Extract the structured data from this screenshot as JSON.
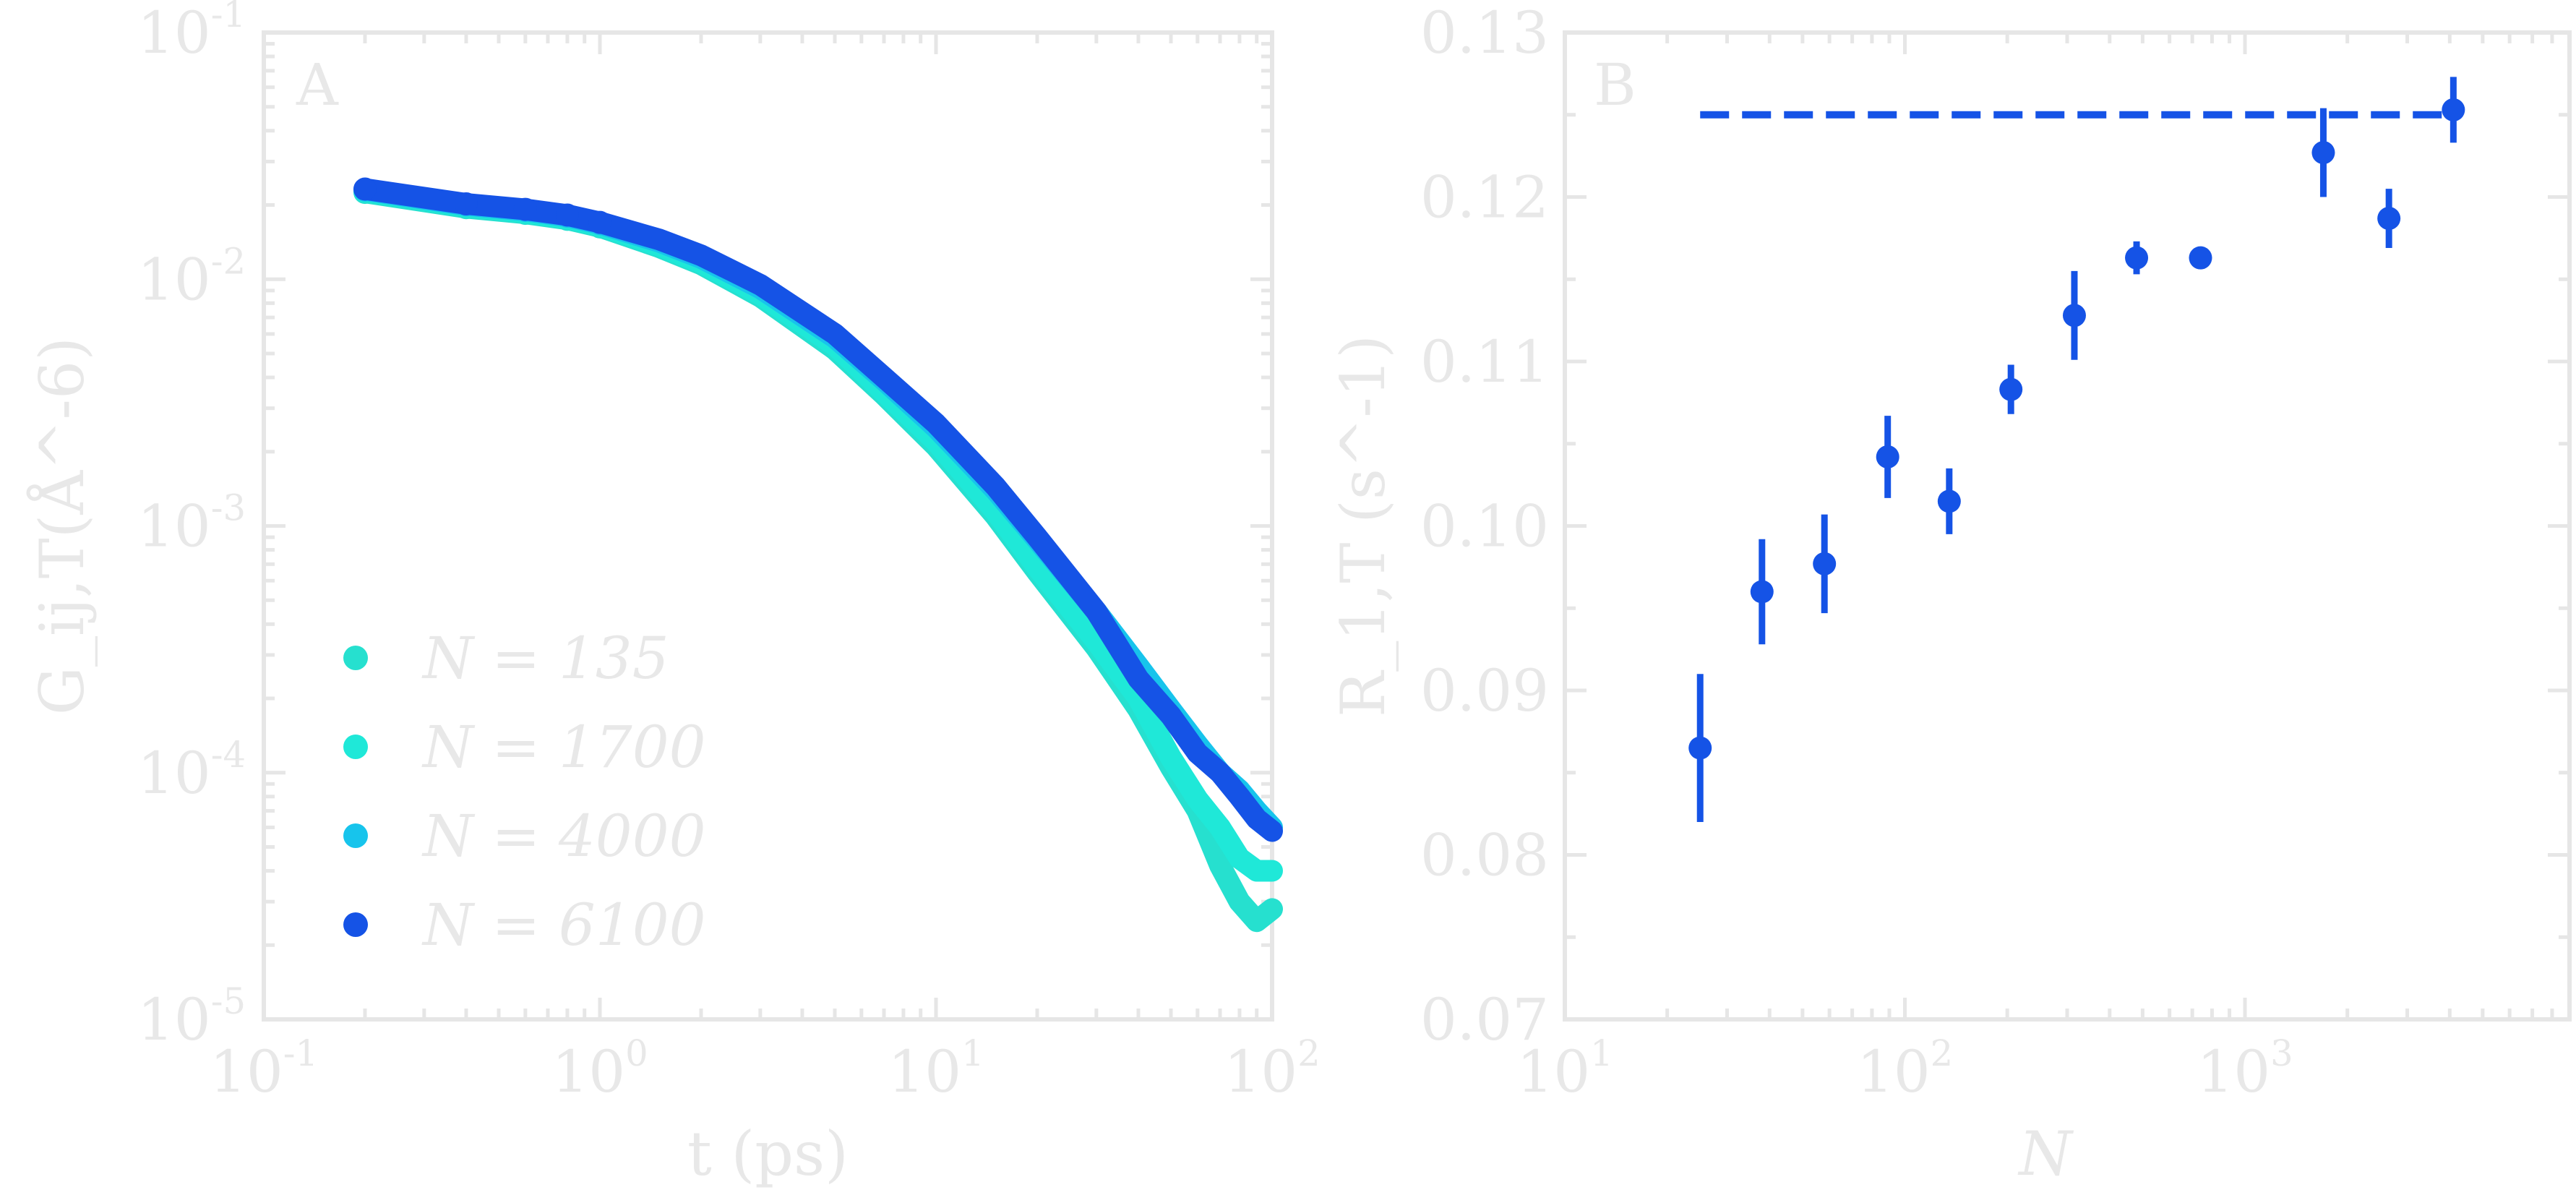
{
  "chart_data": [
    {
      "type": "scatter",
      "panel_label": "A",
      "xlabel": "t (ps)",
      "ylabel": "G_ij,T(Å^-6)",
      "xscale": "log",
      "yscale": "log",
      "xlim": [
        0.1,
        100
      ],
      "ylim": [
        1e-05,
        0.1
      ],
      "x_tick_labels": [
        "10^-1",
        "10^0",
        "10^1",
        "10^2"
      ],
      "y_tick_labels": [
        "10^-5",
        "10^-4",
        "10^-3",
        "10^-2",
        "10^-1"
      ],
      "legend_position": "bottom-left",
      "legend": [
        "N = 135",
        "N = 1700",
        "N = 4000",
        "N = 6100"
      ],
      "series": [
        {
          "name": "N = 135",
          "color": "#26e0cf",
          "x": [
            0.2,
            0.4,
            0.6,
            0.8,
            1.0,
            1.5,
            2,
            3,
            5,
            7,
            10,
            15,
            20,
            30,
            40,
            50,
            60,
            70,
            80,
            90,
            100
          ],
          "y": [
            0.0225,
            0.0195,
            0.0185,
            0.0175,
            0.0163,
            0.0135,
            0.0115,
            0.0085,
            0.0052,
            0.0034,
            0.0021,
            0.0011,
            0.00065,
            0.00032,
            0.00018,
            0.000105,
            7e-05,
            4.2e-05,
            3e-05,
            2.5e-05,
            2.8e-05
          ]
        },
        {
          "name": "N = 1700",
          "color": "#1fe8d8",
          "x": [
            0.2,
            0.4,
            0.6,
            0.8,
            1.0,
            1.5,
            2,
            3,
            5,
            7,
            10,
            15,
            20,
            30,
            40,
            50,
            60,
            70,
            80,
            90,
            100
          ],
          "y": [
            0.0228,
            0.0198,
            0.0187,
            0.0177,
            0.0165,
            0.0137,
            0.0117,
            0.0087,
            0.0054,
            0.0035,
            0.0022,
            0.00115,
            0.00068,
            0.00034,
            0.0002,
            0.000115,
            7.8e-05,
            6e-05,
            4.5e-05,
            4e-05,
            4e-05
          ]
        },
        {
          "name": "N = 4000",
          "color": "#17c4ec",
          "x": [
            0.2,
            0.4,
            0.6,
            0.8,
            1.0,
            1.5,
            2,
            3,
            5,
            7,
            10,
            15,
            20,
            30,
            40,
            50,
            60,
            70,
            80,
            90,
            100
          ],
          "y": [
            0.023,
            0.02,
            0.019,
            0.018,
            0.0168,
            0.0142,
            0.0122,
            0.0092,
            0.0058,
            0.0039,
            0.0025,
            0.0014,
            0.00088,
            0.00045,
            0.00027,
            0.00018,
            0.00013,
            0.0001,
            8.5e-05,
            7e-05,
            6e-05
          ]
        },
        {
          "name": "N = 6100",
          "color": "#1553e6",
          "x": [
            0.2,
            0.4,
            0.6,
            0.8,
            1.0,
            1.5,
            2,
            3,
            5,
            7,
            10,
            15,
            20,
            30,
            40,
            50,
            60,
            70,
            80,
            90,
            100
          ],
          "y": [
            0.0232,
            0.0202,
            0.0192,
            0.0182,
            0.017,
            0.0145,
            0.0125,
            0.0095,
            0.006,
            0.004,
            0.0026,
            0.00145,
            0.0009,
            0.00045,
            0.00024,
            0.00017,
            0.00012,
            0.0001,
            8e-05,
            6.5e-05,
            5.8e-05
          ]
        }
      ]
    },
    {
      "type": "scatter",
      "panel_label": "B",
      "xlabel": "N",
      "ylabel": "R_1,T (s^-1)",
      "xscale": "log",
      "yscale": "linear",
      "xlim": [
        10,
        9000
      ],
      "ylim": [
        0.07,
        0.13
      ],
      "x_tick_labels": [
        "10^1",
        "10^2",
        "10^3"
      ],
      "y_tick_labels": [
        "0.07",
        "0.08",
        "0.09",
        "0.10",
        "0.11",
        "0.12",
        "0.13"
      ],
      "color": "#1553e6",
      "points": [
        {
          "x": 25,
          "y": 0.0865,
          "err": 0.0045
        },
        {
          "x": 38,
          "y": 0.096,
          "err": 0.0032
        },
        {
          "x": 58,
          "y": 0.0977,
          "err": 0.003
        },
        {
          "x": 89,
          "y": 0.1042,
          "err": 0.0025
        },
        {
          "x": 135,
          "y": 0.1015,
          "err": 0.002
        },
        {
          "x": 205,
          "y": 0.1083,
          "err": 0.0015
        },
        {
          "x": 315,
          "y": 0.1128,
          "err": 0.0027
        },
        {
          "x": 480,
          "y": 0.1163,
          "err": 0.001
        },
        {
          "x": 740,
          "y": 0.1163,
          "err": 0.0003
        },
        {
          "x": 1700,
          "y": 0.1227,
          "err": 0.0027
        },
        {
          "x": 2650,
          "y": 0.1187,
          "err": 0.0018
        },
        {
          "x": 4100,
          "y": 0.1253,
          "err": 0.002
        }
      ],
      "reference_line": {
        "x": [
          25,
          4100
        ],
        "y": 0.125
      }
    }
  ]
}
